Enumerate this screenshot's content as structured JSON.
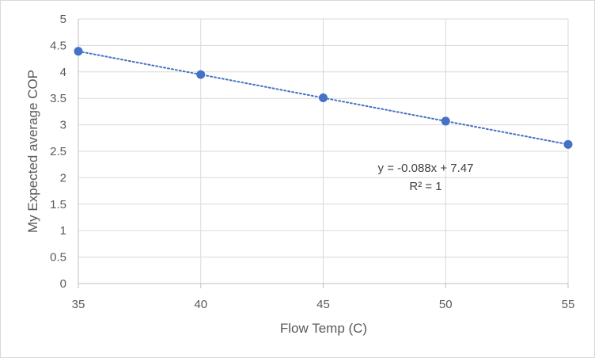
{
  "chart_data": {
    "type": "scatter",
    "title": "",
    "xlabel": "Flow Temp (C)",
    "ylabel": "My Expected average COP",
    "xlim": [
      35,
      55
    ],
    "ylim": [
      0,
      5
    ],
    "xticks": [
      35,
      40,
      45,
      50,
      55
    ],
    "yticks": [
      0,
      0.5,
      1,
      1.5,
      2,
      2.5,
      3,
      3.5,
      4,
      4.5,
      5
    ],
    "grid": true,
    "legend": "none",
    "series": [
      {
        "x": [
          35,
          40,
          45,
          50,
          55
        ],
        "y": [
          4.39,
          3.95,
          3.51,
          3.07,
          2.63
        ],
        "color": "#4472c4",
        "marker": "circle"
      }
    ],
    "trendline": {
      "type": "linear",
      "slope": -0.088,
      "intercept": 7.47,
      "style": "dotted",
      "color": "#4472c4",
      "equation_label": "y = -0.088x + 7.47",
      "r2_label": "R² = 1"
    }
  }
}
